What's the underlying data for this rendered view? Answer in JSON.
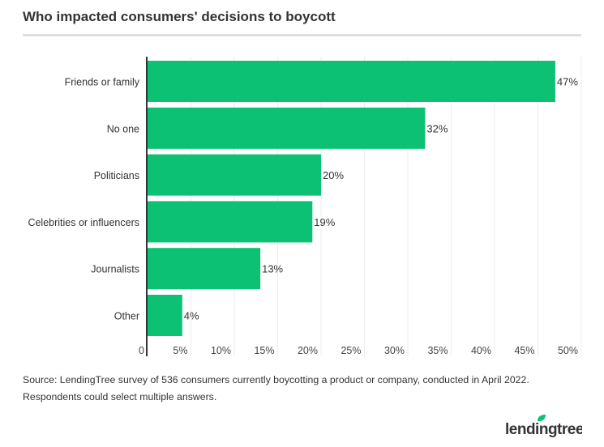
{
  "title": "Who impacted consumers' decisions to boycott",
  "source": "Source: LendingTree survey of 536 consumers currently boycotting a product or company, conducted in April 2022. Respondents could select multiple answers.",
  "logo_text": "lendingtree",
  "colors": {
    "bar": "#0dc174",
    "brand_leaf": "#08c177"
  },
  "chart_data": {
    "type": "bar",
    "orientation": "horizontal",
    "categories": [
      "Friends or family",
      "No one",
      "Politicians",
      "Celebrities or influencers",
      "Journalists",
      "Other"
    ],
    "values": [
      47,
      32,
      20,
      19,
      13,
      4
    ],
    "data_labels": [
      "47%",
      "32%",
      "20%",
      "19%",
      "13%",
      "4%"
    ],
    "xlim": [
      0,
      50
    ],
    "x_ticks": [
      0,
      5,
      10,
      15,
      20,
      25,
      30,
      35,
      40,
      45,
      50
    ],
    "x_tick_labels": [
      "0",
      "5%",
      "10%",
      "15%",
      "20%",
      "25%",
      "30%",
      "35%",
      "40%",
      "45%",
      "50%"
    ],
    "grid": true,
    "legend": "none"
  }
}
